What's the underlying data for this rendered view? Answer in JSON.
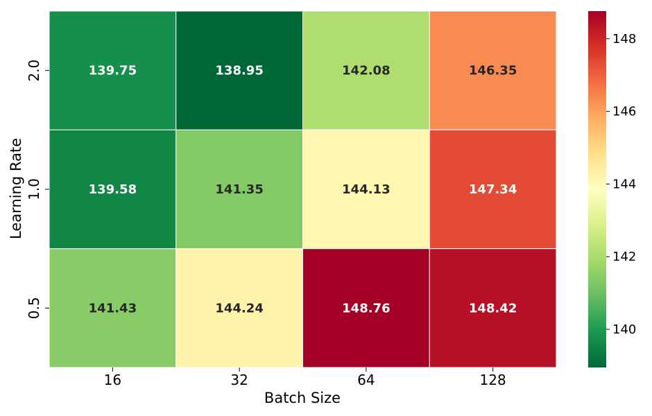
{
  "chart_data": {
    "type": "heatmap",
    "xlabel": "Batch Size",
    "ylabel": "Learning Rate",
    "x_categories": [
      "16",
      "32",
      "64",
      "128"
    ],
    "y_categories": [
      "2.0",
      "1.0",
      "0.5"
    ],
    "values": [
      [
        139.75,
        138.95,
        142.08,
        146.35
      ],
      [
        139.58,
        141.35,
        144.13,
        147.34
      ],
      [
        141.43,
        144.24,
        148.76,
        148.42
      ]
    ],
    "colormap": "RdYlGn_r",
    "color_range": [
      138.95,
      148.76
    ],
    "colorbar_ticks": [
      140,
      142,
      144,
      146,
      148
    ],
    "annotation_colors": {
      "dark_cell": "#ffffff",
      "light_cell": "#262626"
    },
    "cell_border_color": "#ffffff"
  }
}
